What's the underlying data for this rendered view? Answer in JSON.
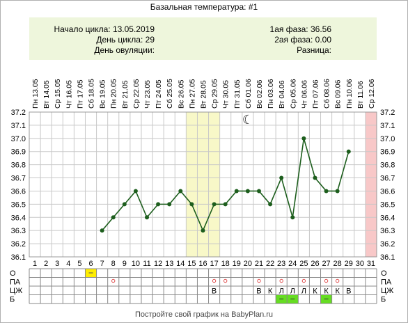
{
  "title": "Базальная температура: #1",
  "footer": "Постройте свой график на BabyPlan.ru",
  "info": {
    "start_label": "Начало цикла:",
    "start_value": "13.05.2019",
    "cycle_day_label": "День цикла:",
    "cycle_day_value": "29",
    "ovulation_label": "День овуляции:",
    "ovulation_value": "",
    "phase1_label": "1ая фаза:",
    "phase1_value": "36.56",
    "phase2_label": "2ая фаза:",
    "phase2_value": "0.00",
    "diff_label": "Разница:",
    "diff_value": ""
  },
  "colors": {
    "line": "#1d5e1d",
    "grid": "#c8c8c8",
    "highlight": "#f8f8c8",
    "today": "#f8c8c8",
    "green_cell": "#66dd22",
    "yellow_cell": "#ffee00",
    "circle": "#e05050"
  },
  "moon_icon": "☾",
  "chart_data": {
    "type": "line",
    "dates": [
      "Пн 13.05",
      "Вт 14.05",
      "Ср 15.05",
      "Чт 16.05",
      "Пт 17.05",
      "Сб 18.05",
      "Вс 19.05",
      "Пн 20.05",
      "Вт 21.05",
      "Ср 22.05",
      "Чт 23.05",
      "Пт 24.05",
      "Сб 25.05",
      "Вс 26.05",
      "Пн 27.05",
      "Вт 28.05",
      "Ср 29.05",
      "Чт 30.05",
      "Пт 31.05",
      "Сб 01.06",
      "Вс 02.06",
      "Пн 03.06",
      "Вт 04.06",
      "Ср 05.06",
      "Чт 06.06",
      "Пт 07.06",
      "Сб 08.06",
      "Вс 09.06",
      "Пн 10.06",
      "Вт 11.06",
      "Ср 12.06"
    ],
    "days": [
      "1",
      "2",
      "3",
      "4",
      "5",
      "6",
      "7",
      "8",
      "9",
      "10",
      "11",
      "12",
      "13",
      "14",
      "15",
      "16",
      "17",
      "18",
      "19",
      "20",
      "21",
      "22",
      "23",
      "24",
      "25",
      "26",
      "27",
      "28",
      "29",
      "30",
      "31"
    ],
    "x": [
      7,
      8,
      9,
      10,
      11,
      12,
      13,
      14,
      15,
      16,
      17,
      18,
      19,
      20,
      21,
      22,
      23,
      24,
      25,
      26,
      27,
      28,
      29
    ],
    "values": [
      36.3,
      36.4,
      36.5,
      36.6,
      36.4,
      36.5,
      36.5,
      36.6,
      36.5,
      36.3,
      36.5,
      36.5,
      36.6,
      36.6,
      36.6,
      36.5,
      36.7,
      36.4,
      37.0,
      36.7,
      36.6,
      36.6,
      36.9
    ],
    "y_ticks": [
      "37.2",
      "37.1",
      "37.0",
      "36.9",
      "36.8",
      "36.7",
      "36.6",
      "36.5",
      "36.4",
      "36.3",
      "36.2",
      "36.1"
    ],
    "ylim": [
      36.1,
      37.2
    ],
    "highlight_days": [
      15,
      17
    ],
    "today_day": 31,
    "moon_day": 20,
    "row_labels": [
      "О",
      "ПА",
      "ЦЖ",
      "Б"
    ],
    "rows": {
      "О": {
        "yellow": [
          6
        ],
        "marks": []
      },
      "ПА": {
        "circles": [
          8,
          17,
          18,
          21,
          23,
          25,
          27,
          28
        ]
      },
      "ЦЖ": {
        "letters": [
          {
            "day": 17,
            "t": "В"
          },
          {
            "day": 21,
            "t": "В"
          },
          {
            "day": 22,
            "t": "К"
          },
          {
            "day": 23,
            "t": "Л"
          },
          {
            "day": 24,
            "t": "Л"
          },
          {
            "day": 25,
            "t": "Л"
          },
          {
            "day": 26,
            "t": "К"
          },
          {
            "day": 27,
            "t": "К"
          },
          {
            "day": 28,
            "t": "К"
          },
          {
            "day": 29,
            "t": "В"
          }
        ]
      },
      "Б": {
        "green": [
          23,
          24,
          27
        ]
      }
    }
  }
}
